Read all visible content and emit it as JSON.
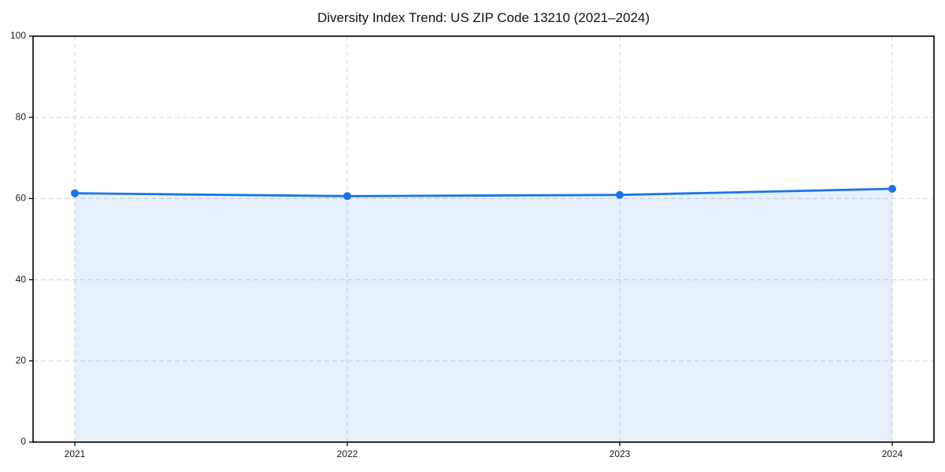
{
  "chart_data": {
    "type": "area",
    "title": "Diversity Index Trend: US ZIP Code 13210 (2021–2024)",
    "categories": [
      "2021",
      "2022",
      "2023",
      "2024"
    ],
    "series": [
      {
        "name": "Diversity Index",
        "values": [
          61.3,
          60.6,
          60.9,
          62.4
        ]
      }
    ],
    "xlabel": "",
    "ylabel": "",
    "ylim": [
      0,
      100
    ],
    "yticks": [
      0,
      20,
      40,
      60,
      80,
      100
    ],
    "grid": true,
    "grid_style": "dashed",
    "legend_position": "none",
    "marker": "circle",
    "colors": {
      "line": "#1a73e8",
      "area_fill": "#1a73e8",
      "area_opacity": 0.11,
      "grid": "#dcdcdc",
      "spine": "#000000",
      "tick_text": "#1a1a1a",
      "background": "#ffffff"
    }
  }
}
